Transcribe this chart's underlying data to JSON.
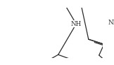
{
  "bg_color": "#ffffff",
  "line_color": "#2a2a2a",
  "line_width": 0.9,
  "text_color": "#2a2a2a",
  "font_size": 5.8,
  "xlim": [
    -0.05,
    1.05
  ],
  "ylim": [
    -0.05,
    1.05
  ]
}
